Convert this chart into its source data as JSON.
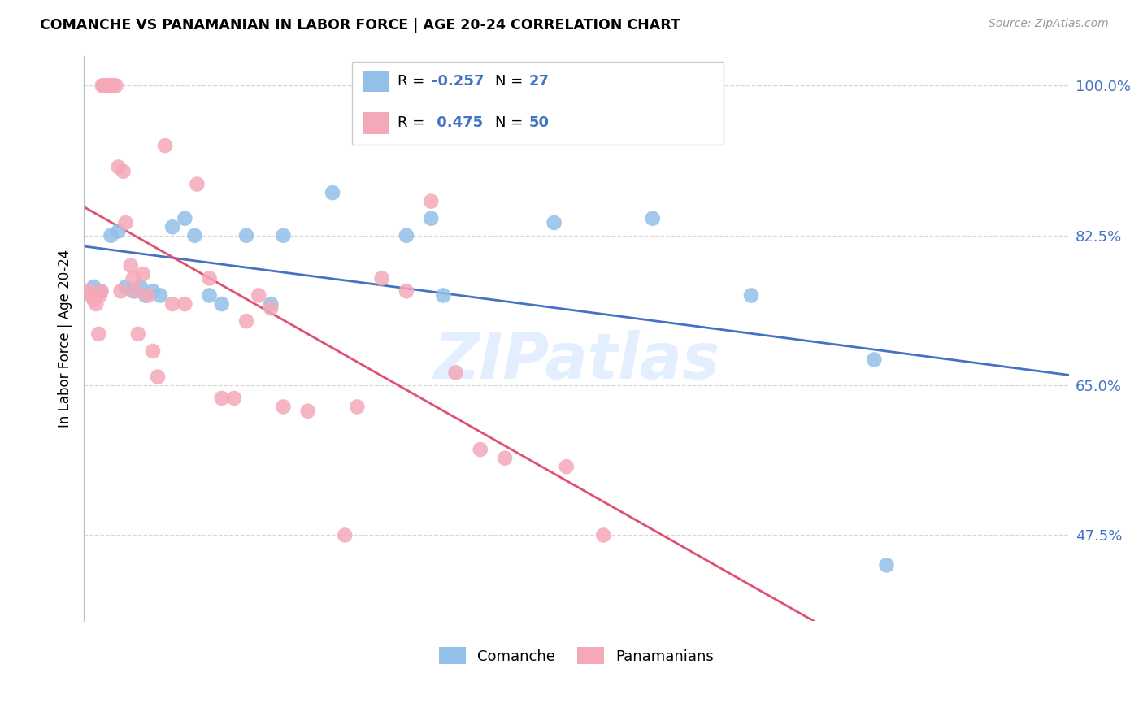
{
  "title": "COMANCHE VS PANAMANIAN IN LABOR FORCE | AGE 20-24 CORRELATION CHART",
  "source": "Source: ZipAtlas.com",
  "ylabel": "In Labor Force | Age 20-24",
  "xlim": [
    0.0,
    40.0
  ],
  "ylim": [
    37.5,
    103.5
  ],
  "yticks": [
    47.5,
    65.0,
    82.5,
    100.0
  ],
  "ytick_labels": [
    "47.5%",
    "65.0%",
    "82.5%",
    "100.0%"
  ],
  "comanche_R": -0.257,
  "comanche_N": 27,
  "panamanian_R": 0.475,
  "panamanian_N": 50,
  "comanche_color": "#92C0E8",
  "panamanian_color": "#F5A8B8",
  "comanche_line_color": "#4472C4",
  "panamanian_line_color": "#E05070",
  "label_color": "#4472C4",
  "watermark": "ZIPatlas",
  "background_color": "#FFFFFF",
  "grid_color": "#D8D8D8",
  "comanche_x": [
    0.4,
    0.7,
    1.1,
    1.4,
    1.7,
    2.0,
    2.3,
    2.5,
    2.8,
    3.1,
    3.6,
    4.1,
    4.5,
    5.1,
    5.6,
    6.6,
    7.6,
    8.1,
    10.1,
    13.1,
    14.1,
    14.6,
    19.1,
    23.1,
    27.1,
    32.1,
    32.6
  ],
  "comanche_y": [
    76.5,
    76.0,
    82.5,
    83.0,
    76.5,
    76.0,
    76.5,
    75.5,
    76.0,
    75.5,
    83.5,
    84.5,
    82.5,
    75.5,
    74.5,
    82.5,
    74.5,
    82.5,
    87.5,
    82.5,
    84.5,
    75.5,
    84.0,
    84.5,
    75.5,
    68.0,
    44.0
  ],
  "panamanian_x": [
    0.2,
    0.3,
    0.4,
    0.5,
    0.6,
    0.65,
    0.7,
    0.75,
    0.8,
    0.85,
    0.9,
    0.95,
    1.0,
    1.1,
    1.2,
    1.3,
    1.4,
    1.5,
    1.6,
    1.7,
    1.9,
    2.0,
    2.1,
    2.2,
    2.4,
    2.6,
    2.8,
    3.0,
    3.3,
    3.6,
    4.1,
    4.6,
    5.1,
    5.6,
    6.1,
    6.6,
    7.1,
    7.6,
    8.1,
    9.1,
    10.6,
    11.1,
    12.1,
    13.1,
    14.1,
    15.1,
    16.1,
    17.1,
    19.6,
    21.1
  ],
  "panamanian_y": [
    76.0,
    75.5,
    75.0,
    74.5,
    71.0,
    75.5,
    76.0,
    100.0,
    100.0,
    100.0,
    100.0,
    100.0,
    100.0,
    100.0,
    100.0,
    100.0,
    90.5,
    76.0,
    90.0,
    84.0,
    79.0,
    77.5,
    76.0,
    71.0,
    78.0,
    75.5,
    69.0,
    66.0,
    93.0,
    74.5,
    74.5,
    88.5,
    77.5,
    63.5,
    63.5,
    72.5,
    75.5,
    74.0,
    62.5,
    62.0,
    47.5,
    62.5,
    77.5,
    76.0,
    86.5,
    66.5,
    57.5,
    56.5,
    55.5,
    47.5
  ]
}
